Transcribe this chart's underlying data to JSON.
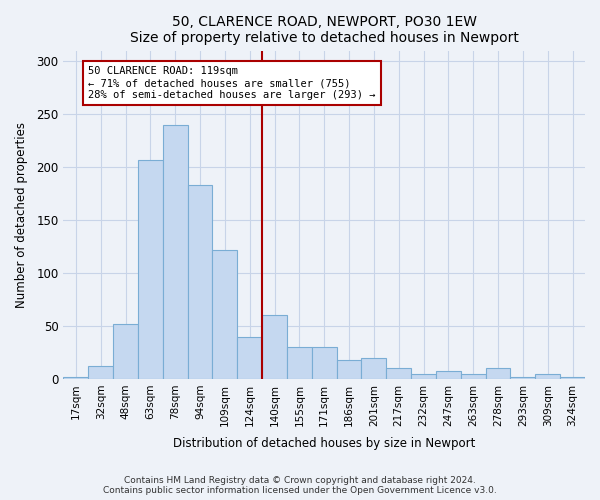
{
  "title": "50, CLARENCE ROAD, NEWPORT, PO30 1EW",
  "subtitle": "Size of property relative to detached houses in Newport",
  "xlabel": "Distribution of detached houses by size in Newport",
  "ylabel": "Number of detached properties",
  "bar_color": "#c5d8f0",
  "bar_edge_color": "#7aadd4",
  "property_line_color": "#aa0000",
  "annotation_box_color": "#aa0000",
  "categories": [
    "17sqm",
    "32sqm",
    "48sqm",
    "63sqm",
    "78sqm",
    "94sqm",
    "109sqm",
    "124sqm",
    "140sqm",
    "155sqm",
    "171sqm",
    "186sqm",
    "201sqm",
    "217sqm",
    "232sqm",
    "247sqm",
    "263sqm",
    "278sqm",
    "293sqm",
    "309sqm",
    "324sqm"
  ],
  "values": [
    2,
    12,
    52,
    207,
    240,
    183,
    122,
    40,
    60,
    30,
    30,
    18,
    20,
    10,
    5,
    7,
    5,
    10,
    2,
    5,
    2
  ],
  "property_line_x": 7.5,
  "annotation_text": "50 CLARENCE ROAD: 119sqm\n← 71% of detached houses are smaller (755)\n28% of semi-detached houses are larger (293) →",
  "footnote": "Contains HM Land Registry data © Crown copyright and database right 2024.\nContains public sector information licensed under the Open Government Licence v3.0.",
  "ylim": [
    0,
    310
  ],
  "yticks": [
    0,
    50,
    100,
    150,
    200,
    250,
    300
  ],
  "background_color": "#eef2f8",
  "plot_background_color": "#eef2f8",
  "grid_color": "#c8d4e8"
}
